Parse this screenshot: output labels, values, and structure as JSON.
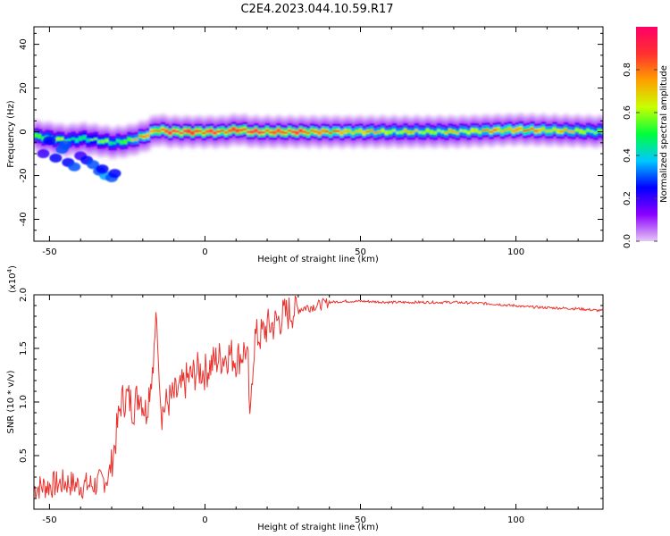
{
  "title": "C2E4.2023.044.10.59.R17",
  "colors": {
    "snr_line": "#e8332f",
    "axis": "#000000",
    "colorbar_stops": [
      "#e6c8f5",
      "#8b00ff",
      "#0000ff",
      "#00c8ff",
      "#00ff3c",
      "#c8ff00",
      "#ffa000",
      "#ff3030",
      "#ff0066"
    ]
  },
  "chart_data": [
    {
      "type": "heatmap",
      "xlabel": "Height of straight line (km)",
      "ylabel": "Frequency (Hz)",
      "xlim": [
        -55,
        128
      ],
      "ylim": [
        -50,
        48
      ],
      "x_ticks": [
        -50,
        0,
        50,
        100
      ],
      "y_ticks": [
        -40,
        -20,
        0,
        20,
        40
      ],
      "colorbar": {
        "label": "Normalized spectral amplitude",
        "range": [
          0.0,
          1.0
        ],
        "ticks": [
          0.0,
          0.2,
          0.4,
          0.6,
          0.8
        ],
        "tick_labels": [
          "0.0",
          "0.2",
          "0.4",
          "0.6",
          "0.8"
        ]
      },
      "ridge": {
        "x": [
          -55,
          -50,
          -45,
          -40,
          -35,
          -30,
          -25,
          -20,
          -16,
          -12,
          -5,
          0,
          5,
          10,
          15,
          20,
          30,
          40,
          60,
          80,
          100,
          128
        ],
        "center_hz": [
          -2,
          -3,
          -4,
          -3,
          -4,
          -5,
          -4,
          -2,
          1,
          0,
          0,
          0,
          0,
          1,
          0,
          0,
          0,
          0,
          0,
          0,
          1,
          0
        ],
        "amplitude": [
          0.55,
          0.5,
          0.5,
          0.45,
          0.45,
          0.5,
          0.55,
          0.7,
          0.8,
          0.85,
          0.9,
          0.85,
          0.8,
          0.9,
          0.85,
          0.85,
          0.85,
          0.75,
          0.6,
          0.6,
          0.75,
          0.55
        ]
      },
      "scatter_blobs": {
        "x": [
          -52,
          -48,
          -46,
          -44,
          -42,
          -40,
          -38,
          -36,
          -34,
          -32,
          -30,
          -33,
          -29,
          -45,
          -50
        ],
        "hz": [
          -10,
          -12,
          -8,
          -14,
          -16,
          -11,
          -13,
          -15,
          -18,
          -20,
          -21,
          -17,
          -19,
          -6,
          -4
        ],
        "amplitude": [
          0.2,
          0.25,
          0.3,
          0.25,
          0.3,
          0.2,
          0.25,
          0.3,
          0.3,
          0.35,
          0.3,
          0.25,
          0.25,
          0.3,
          0.25
        ]
      }
    },
    {
      "type": "line",
      "xlabel": "Height of straight line (km)",
      "ylabel": "SNR (10 * v/v)",
      "y_multiplier": "(x10",
      "y_multiplier_exp": "4",
      "y_multiplier_close": ")",
      "xlim": [
        -55,
        128
      ],
      "ylim": [
        0,
        2.0
      ],
      "x_ticks": [
        -50,
        0,
        50,
        100
      ],
      "y_ticks": [
        0.5,
        1.0,
        1.5,
        2.0
      ],
      "y_tick_labels": [
        "0.5",
        "1.0",
        "1.5",
        "2.0"
      ],
      "series": [
        {
          "x": [
            -55,
            -50,
            -45,
            -40,
            -35,
            -31,
            -29,
            -27,
            -25,
            -23,
            -21,
            -19,
            -17,
            -16,
            -15.5,
            -14,
            -12,
            -10,
            -8,
            -6,
            -4,
            -2,
            0,
            2,
            4,
            6,
            8,
            10,
            12,
            13,
            14,
            14.5,
            15,
            16,
            18,
            20,
            22,
            25,
            28,
            32,
            36,
            40,
            45,
            50,
            60,
            70,
            80,
            90,
            95,
            98,
            100,
            102,
            110,
            120,
            128
          ],
          "values": [
            0.2,
            0.22,
            0.25,
            0.22,
            0.23,
            0.3,
            0.6,
            1.0,
            1.05,
            0.95,
            1.1,
            0.9,
            1.3,
            1.7,
            1.85,
            0.9,
            1.0,
            1.05,
            1.1,
            1.2,
            1.25,
            1.3,
            1.28,
            1.35,
            1.4,
            1.42,
            1.45,
            1.4,
            1.45,
            1.5,
            1.3,
            0.65,
            1.2,
            1.6,
            1.62,
            1.7,
            1.72,
            1.8,
            1.85,
            1.88,
            1.9,
            1.93,
            1.94,
            1.94,
            1.93,
            1.93,
            1.93,
            1.92,
            1.91,
            1.9,
            1.9,
            1.89,
            1.88,
            1.87,
            1.85
          ]
        }
      ]
    }
  ]
}
